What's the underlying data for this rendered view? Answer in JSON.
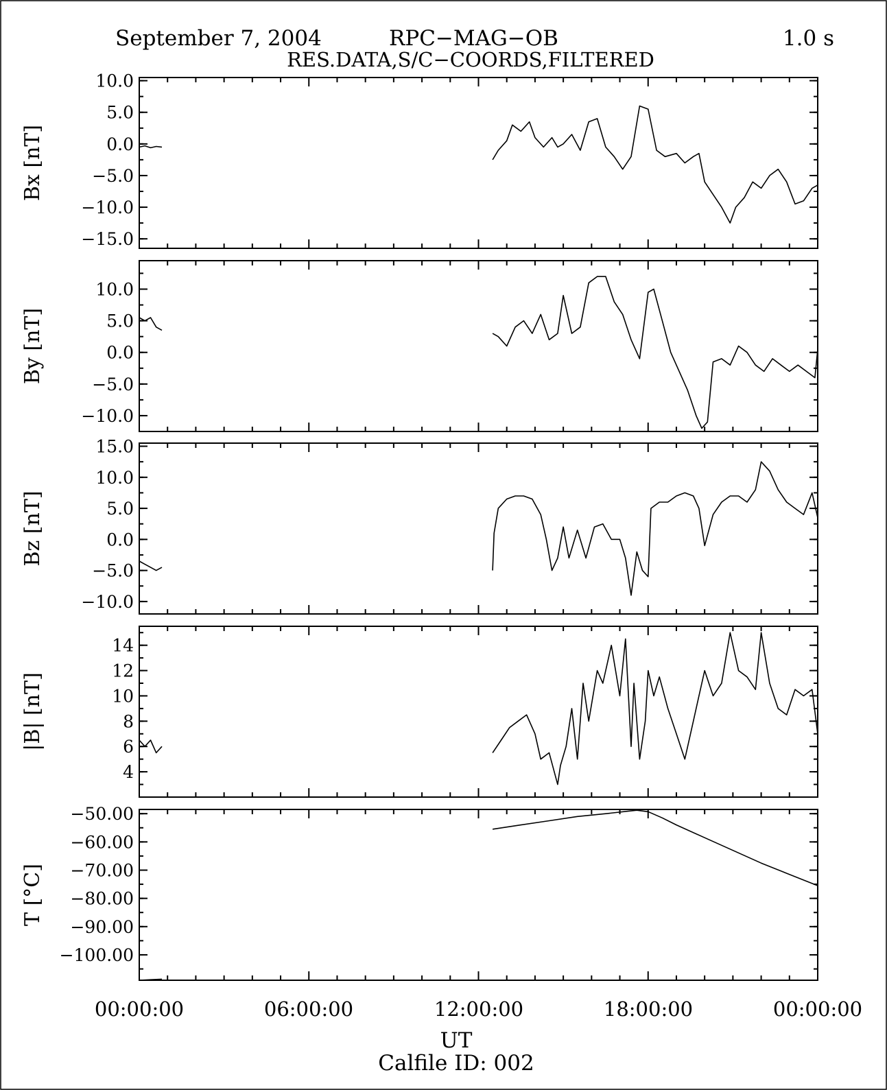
{
  "header": {
    "date": "September 7, 2004",
    "instrument": "RPC−MAG−OB",
    "resolution": "1.0 s",
    "subtitle": "RES.DATA,S/C−COORDS,FILTERED"
  },
  "footer": {
    "xlabel": "UT",
    "calfile": "Calfile ID: 002"
  },
  "colors": {
    "line": "#000000",
    "background": "#ffffff"
  },
  "chart_data": [
    {
      "type": "line",
      "ylabel": "Bx [nT]",
      "ylim": [
        -16.5,
        10.5
      ],
      "yticks": [
        10,
        5,
        0,
        -5,
        -10,
        -15
      ],
      "ytick_labels": [
        "10.0",
        "5.0",
        "0.0",
        "−5.0",
        "−10.0",
        "−15.0"
      ],
      "xlim": [
        0,
        24
      ],
      "xtick_labels": [
        "00:00:00",
        "06:00:00",
        "12:00:00",
        "18:00:00",
        "00:00:00"
      ],
      "series": [
        {
          "x": [
            0.0,
            0.2,
            0.4,
            0.6,
            0.8
          ],
          "y": [
            -0.5,
            -0.3,
            -0.6,
            -0.4,
            -0.5
          ]
        },
        {
          "x": [
            12.5,
            12.7,
            13.0,
            13.2,
            13.5,
            13.8,
            14.0,
            14.3,
            14.6,
            14.8,
            15.0,
            15.3,
            15.6,
            15.9,
            16.2,
            16.5,
            16.8,
            17.1,
            17.4,
            17.7,
            18.0,
            18.3,
            18.6,
            19.0,
            19.3,
            19.6,
            19.8,
            20.0,
            20.3,
            20.6,
            20.9,
            21.1,
            21.4,
            21.7,
            22.0,
            22.3,
            22.6,
            22.9,
            23.2,
            23.5,
            23.8,
            24.0
          ],
          "y": [
            -2.5,
            -1.0,
            0.5,
            3.0,
            2.0,
            3.5,
            1.0,
            -0.5,
            1.0,
            -0.5,
            0.0,
            1.5,
            -1.0,
            3.5,
            4.0,
            -0.5,
            -2.0,
            -4.0,
            -2.0,
            6.0,
            5.5,
            -1.0,
            -2.0,
            -1.5,
            -3.0,
            -2.0,
            -1.5,
            -6.0,
            -8.0,
            -10.0,
            -12.5,
            -10.0,
            -8.5,
            -6.0,
            -7.0,
            -5.0,
            -4.0,
            -6.0,
            -9.5,
            -9.0,
            -7.0,
            -6.5
          ]
        }
      ]
    },
    {
      "type": "line",
      "ylabel": "By [nT]",
      "ylim": [
        -12.5,
        14.5
      ],
      "yticks": [
        10,
        5,
        0,
        -5,
        -10
      ],
      "ytick_labels": [
        "10.0",
        "5.0",
        "0.0",
        "−5.0",
        "−10.0"
      ],
      "xlim": [
        0,
        24
      ],
      "xtick_labels": [
        "00:00:00",
        "06:00:00",
        "12:00:00",
        "18:00:00",
        "00:00:00"
      ],
      "series": [
        {
          "x": [
            0.0,
            0.2,
            0.4,
            0.6,
            0.8
          ],
          "y": [
            5.5,
            5.0,
            5.5,
            4.0,
            3.5
          ]
        },
        {
          "x": [
            12.5,
            12.7,
            13.0,
            13.3,
            13.6,
            13.9,
            14.2,
            14.5,
            14.8,
            15.0,
            15.3,
            15.6,
            15.9,
            16.2,
            16.5,
            16.8,
            17.1,
            17.4,
            17.7,
            18.0,
            18.2,
            18.5,
            18.8,
            19.1,
            19.4,
            19.7,
            19.9,
            20.1,
            20.3,
            20.6,
            20.9,
            21.2,
            21.5,
            21.8,
            22.1,
            22.4,
            22.7,
            23.0,
            23.3,
            23.6,
            23.9,
            24.0
          ],
          "y": [
            3.0,
            2.5,
            1.0,
            4.0,
            5.0,
            3.0,
            6.0,
            2.0,
            3.0,
            9.0,
            3.0,
            4.0,
            11.0,
            12.0,
            12.0,
            8.0,
            6.0,
            2.0,
            -1.0,
            9.5,
            10.0,
            5.0,
            0.0,
            -3.0,
            -6.0,
            -10.0,
            -12.0,
            -11.0,
            -1.5,
            -1.0,
            -2.0,
            1.0,
            0.0,
            -2.0,
            -3.0,
            -1.0,
            -2.0,
            -3.0,
            -2.0,
            -3.0,
            -4.0,
            0.5
          ]
        }
      ]
    },
    {
      "type": "line",
      "ylabel": "Bz [nT]",
      "ylim": [
        -12.0,
        15.5
      ],
      "yticks": [
        15,
        10,
        5,
        0,
        -5,
        -10
      ],
      "ytick_labels": [
        "15.0",
        "10.0",
        "5.0",
        "0.0",
        "−5.0",
        "−10.0"
      ],
      "xlim": [
        0,
        24
      ],
      "xtick_labels": [
        "00:00:00",
        "06:00:00",
        "12:00:00",
        "18:00:00",
        "00:00:00"
      ],
      "series": [
        {
          "x": [
            0.0,
            0.2,
            0.4,
            0.6,
            0.8
          ],
          "y": [
            -3.5,
            -4.0,
            -4.5,
            -5.0,
            -4.5
          ]
        },
        {
          "x": [
            12.5,
            12.55,
            12.7,
            13.0,
            13.3,
            13.6,
            13.9,
            14.2,
            14.4,
            14.6,
            14.8,
            15.0,
            15.2,
            15.5,
            15.8,
            16.1,
            16.4,
            16.7,
            17.0,
            17.2,
            17.4,
            17.6,
            17.8,
            18.0,
            18.1,
            18.4,
            18.7,
            19.0,
            19.3,
            19.6,
            19.8,
            20.0,
            20.3,
            20.6,
            20.9,
            21.2,
            21.5,
            21.8,
            22.0,
            22.3,
            22.6,
            22.9,
            23.2,
            23.5,
            23.8,
            24.0
          ],
          "y": [
            -5.0,
            1.0,
            5.0,
            6.5,
            7.0,
            7.0,
            6.5,
            4.0,
            0.0,
            -5.0,
            -3.0,
            2.0,
            -3.0,
            1.5,
            -3.0,
            2.0,
            2.5,
            0.0,
            0.0,
            -3.0,
            -9.0,
            -2.0,
            -5.0,
            -6.0,
            5.0,
            6.0,
            6.0,
            7.0,
            7.5,
            7.0,
            5.0,
            -1.0,
            4.0,
            6.0,
            7.0,
            7.0,
            6.0,
            8.0,
            12.5,
            11.0,
            8.0,
            6.0,
            5.0,
            4.0,
            7.5,
            3.5
          ]
        }
      ]
    },
    {
      "type": "line",
      "ylabel": "|B| [nT]",
      "ylim": [
        2.0,
        15.5
      ],
      "yticks": [
        14,
        12,
        10,
        8,
        6,
        4
      ],
      "ytick_labels": [
        "14",
        "12",
        "10",
        "8",
        "6",
        "4"
      ],
      "xlim": [
        0,
        24
      ],
      "xtick_labels": [
        "00:00:00",
        "06:00:00",
        "12:00:00",
        "18:00:00",
        "00:00:00"
      ],
      "series": [
        {
          "x": [
            0.0,
            0.2,
            0.4,
            0.6,
            0.8
          ],
          "y": [
            6.5,
            6.0,
            6.5,
            5.5,
            6.0
          ]
        },
        {
          "x": [
            12.5,
            12.8,
            13.1,
            13.4,
            13.7,
            14.0,
            14.2,
            14.5,
            14.8,
            14.9,
            15.1,
            15.3,
            15.5,
            15.7,
            15.9,
            16.2,
            16.4,
            16.7,
            17.0,
            17.2,
            17.4,
            17.5,
            17.7,
            17.9,
            18.0,
            18.2,
            18.4,
            18.7,
            19.0,
            19.3,
            19.6,
            19.8,
            20.0,
            20.3,
            20.6,
            20.9,
            21.2,
            21.5,
            21.8,
            22.0,
            22.3,
            22.6,
            22.9,
            23.2,
            23.5,
            23.8,
            24.0
          ],
          "y": [
            5.5,
            6.5,
            7.5,
            8.0,
            8.5,
            7.0,
            5.0,
            5.5,
            3.0,
            4.5,
            6.0,
            9.0,
            5.0,
            11.0,
            8.0,
            12.0,
            11.0,
            14.0,
            10.0,
            14.5,
            6.0,
            11.0,
            5.0,
            8.0,
            12.0,
            10.0,
            11.5,
            9.0,
            7.0,
            5.0,
            8.0,
            10.0,
            12.0,
            10.0,
            11.0,
            15.0,
            12.0,
            11.5,
            10.5,
            15.0,
            11.0,
            9.0,
            8.5,
            10.5,
            10.0,
            10.5,
            7.0
          ]
        }
      ]
    },
    {
      "type": "line",
      "ylabel": "T [°C]",
      "ylim": [
        -109.0,
        -48.5
      ],
      "yticks": [
        -50,
        -60,
        -70,
        -80,
        -90,
        -100
      ],
      "ytick_labels": [
        "−50.00",
        "−60.00",
        "−70.00",
        "−80.00",
        "−90.00",
        "−100.00"
      ],
      "xlim": [
        0,
        24
      ],
      "xtick_labels": [
        "00:00:00",
        "06:00:00",
        "12:00:00",
        "18:00:00",
        "00:00:00"
      ],
      "series": [
        {
          "x": [
            0.0,
            0.4,
            0.8
          ],
          "y": [
            -109.0,
            -108.8,
            -108.6
          ]
        },
        {
          "x": [
            12.5,
            13.5,
            14.5,
            15.5,
            16.5,
            17.2,
            17.6,
            18.0,
            18.5,
            19.0,
            20.0,
            21.0,
            22.0,
            23.0,
            24.0
          ],
          "y": [
            -55.5,
            -54.0,
            -52.5,
            -51.0,
            -50.0,
            -49.2,
            -48.8,
            -49.3,
            -51.5,
            -54.0,
            -58.5,
            -63.0,
            -67.5,
            -71.5,
            -75.5
          ]
        }
      ]
    }
  ]
}
